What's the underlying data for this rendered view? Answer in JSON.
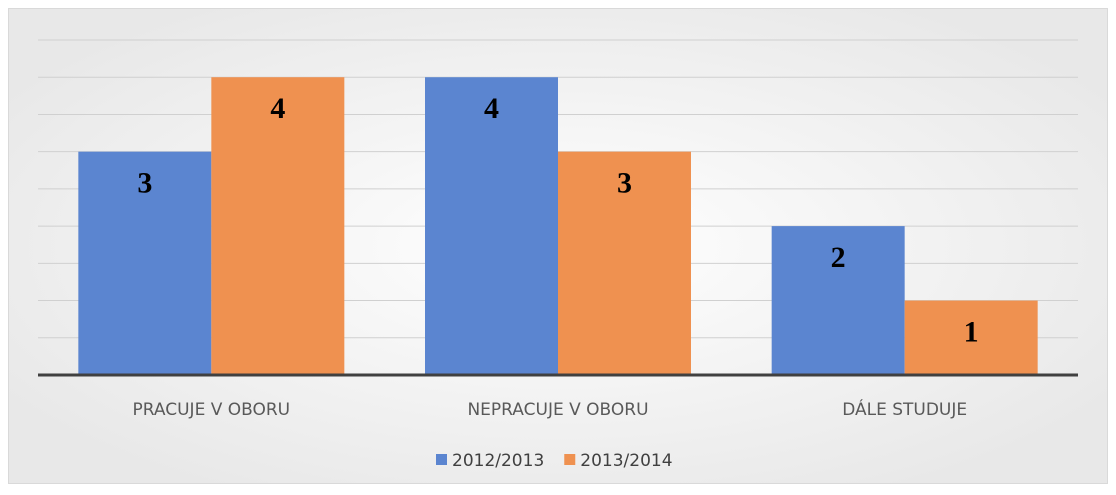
{
  "chart_data": {
    "type": "bar",
    "categories": [
      "PRACUJE V OBORU",
      "NEPRACUJE V OBORU",
      "DÁLE STUDUJE"
    ],
    "series": [
      {
        "name": "2012/2013",
        "color": "#5b85d0",
        "values": [
          3,
          4,
          2
        ]
      },
      {
        "name": "2013/2014",
        "color": "#ef9150",
        "values": [
          4,
          3,
          1
        ]
      }
    ],
    "ylim": [
      0,
      4.5
    ],
    "yticks": [
      0,
      0.5,
      1,
      1.5,
      2,
      2.5,
      3,
      3.5,
      4,
      4.5
    ],
    "grid": true,
    "legend": "bottom"
  }
}
